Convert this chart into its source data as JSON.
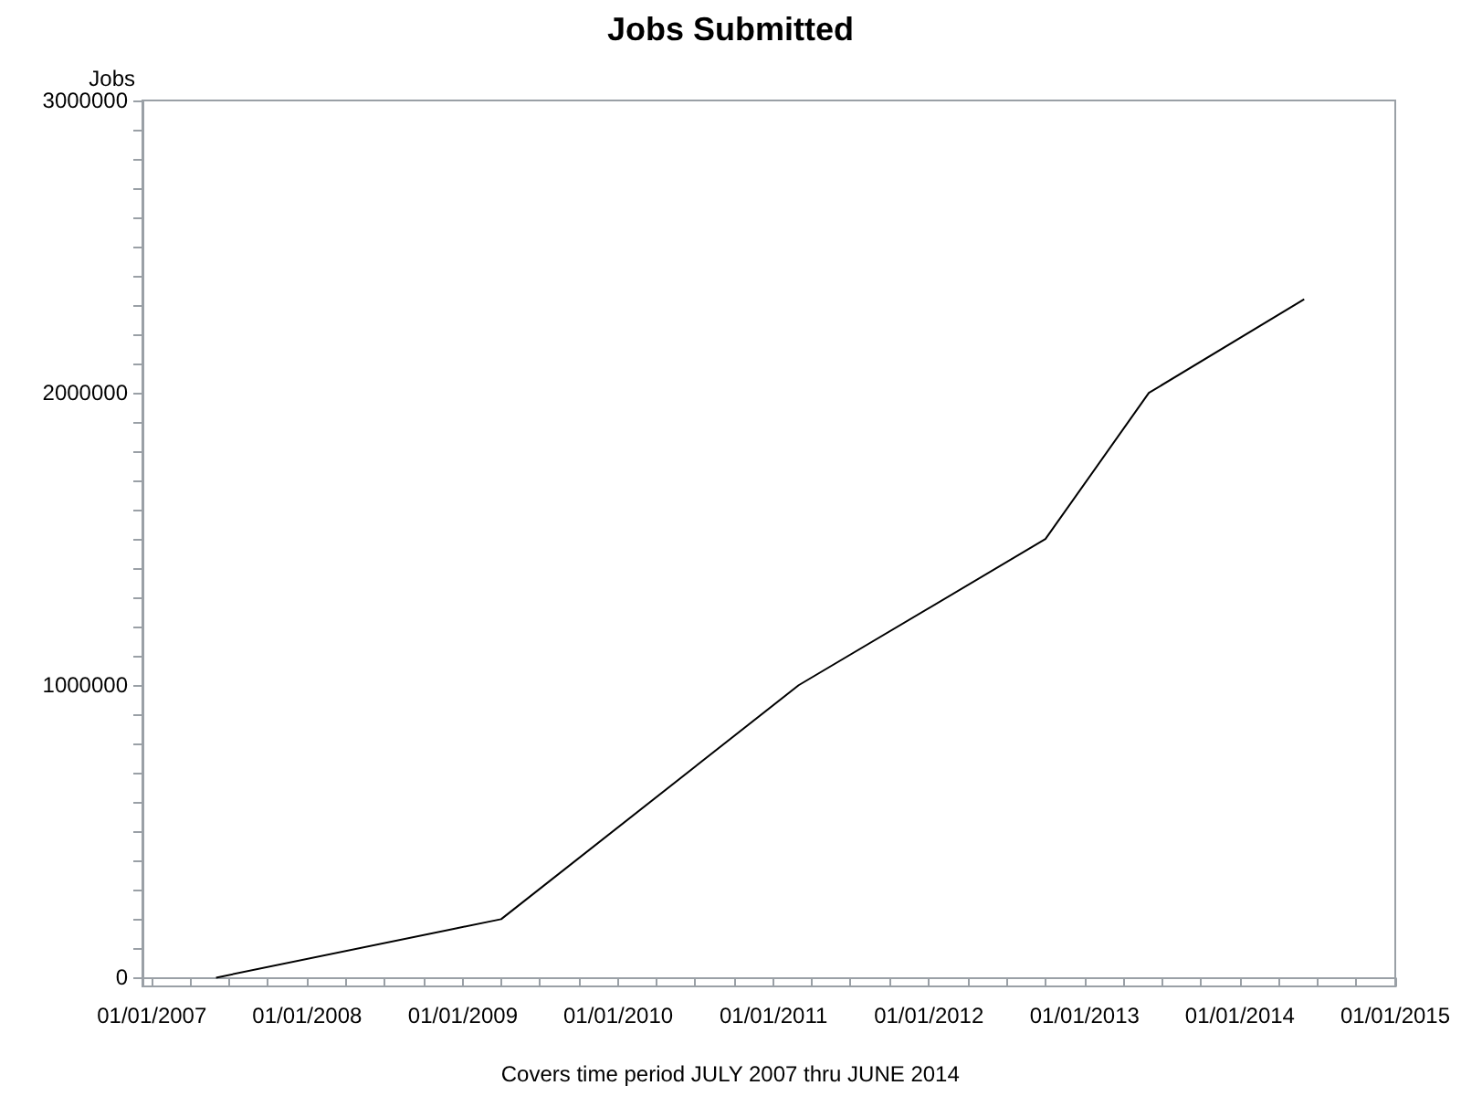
{
  "chart_data": {
    "type": "line",
    "title": "Jobs Submitted",
    "ylabel": "Jobs",
    "annotations": [
      "Covers time period JULY 2007 thru JUNE 2014"
    ],
    "x": [
      "2007-06",
      "2009-04",
      "2011-03",
      "2012-10",
      "2013-06",
      "2014-06"
    ],
    "series": [
      {
        "color": "#000000",
        "values": [
          0,
          200000,
          1000000,
          1500000,
          2000000,
          2320000
        ]
      }
    ],
    "xlim": [
      "2006-12-10",
      "2015-01-01"
    ],
    "xticks": [
      {
        "value": "2007-01-01",
        "label": "01/01/2007"
      },
      {
        "value": "2007-04-01",
        "label": null
      },
      {
        "value": "2007-07-01",
        "label": null
      },
      {
        "value": "2007-10-01",
        "label": null
      },
      {
        "value": "2008-01-01",
        "label": "01/01/2008"
      },
      {
        "value": "2008-04-01",
        "label": null
      },
      {
        "value": "2008-07-01",
        "label": null
      },
      {
        "value": "2008-10-01",
        "label": null
      },
      {
        "value": "2009-01-01",
        "label": "01/01/2009"
      },
      {
        "value": "2009-04-01",
        "label": null
      },
      {
        "value": "2009-07-01",
        "label": null
      },
      {
        "value": "2009-10-01",
        "label": null
      },
      {
        "value": "2010-01-01",
        "label": "01/01/2010"
      },
      {
        "value": "2010-04-01",
        "label": null
      },
      {
        "value": "2010-07-01",
        "label": null
      },
      {
        "value": "2010-10-01",
        "label": null
      },
      {
        "value": "2011-01-01",
        "label": "01/01/2011"
      },
      {
        "value": "2011-04-01",
        "label": null
      },
      {
        "value": "2011-07-01",
        "label": null
      },
      {
        "value": "2011-10-01",
        "label": null
      },
      {
        "value": "2012-01-01",
        "label": "01/01/2012"
      },
      {
        "value": "2012-04-01",
        "label": null
      },
      {
        "value": "2012-07-01",
        "label": null
      },
      {
        "value": "2012-10-01",
        "label": null
      },
      {
        "value": "2013-01-01",
        "label": "01/01/2013"
      },
      {
        "value": "2013-04-01",
        "label": null
      },
      {
        "value": "2013-07-01",
        "label": null
      },
      {
        "value": "2013-10-01",
        "label": null
      },
      {
        "value": "2014-01-01",
        "label": "01/01/2014"
      },
      {
        "value": "2014-04-01",
        "label": null
      },
      {
        "value": "2014-07-01",
        "label": null
      },
      {
        "value": "2014-10-01",
        "label": null
      },
      {
        "value": "2015-01-01",
        "label": "01/01/2015"
      }
    ],
    "ylim": [
      -30000,
      3000000
    ],
    "yticks": [
      0,
      {
        "value": 100000,
        "label": null
      },
      {
        "value": 200000,
        "label": null
      },
      {
        "value": 300000,
        "label": null
      },
      {
        "value": 400000,
        "label": null
      },
      {
        "value": 500000,
        "label": null
      },
      {
        "value": 600000,
        "label": null
      },
      {
        "value": 700000,
        "label": null
      },
      {
        "value": 800000,
        "label": null
      },
      {
        "value": 900000,
        "label": null
      },
      1000000,
      {
        "value": 1100000,
        "label": null
      },
      {
        "value": 1200000,
        "label": null
      },
      {
        "value": 1300000,
        "label": null
      },
      {
        "value": 1400000,
        "label": null
      },
      {
        "value": 1500000,
        "label": null
      },
      {
        "value": 1600000,
        "label": null
      },
      {
        "value": 1700000,
        "label": null
      },
      {
        "value": 1800000,
        "label": null
      },
      {
        "value": 1900000,
        "label": null
      },
      2000000,
      {
        "value": 2100000,
        "label": null
      },
      {
        "value": 2200000,
        "label": null
      },
      {
        "value": 2300000,
        "label": null
      },
      {
        "value": 2400000,
        "label": null
      },
      {
        "value": 2500000,
        "label": null
      },
      {
        "value": 2600000,
        "label": null
      },
      {
        "value": 2700000,
        "label": null
      },
      {
        "value": 2800000,
        "label": null
      },
      {
        "value": 2900000,
        "label": null
      },
      3000000
    ],
    "marker": "none",
    "line_style": "solid"
  }
}
